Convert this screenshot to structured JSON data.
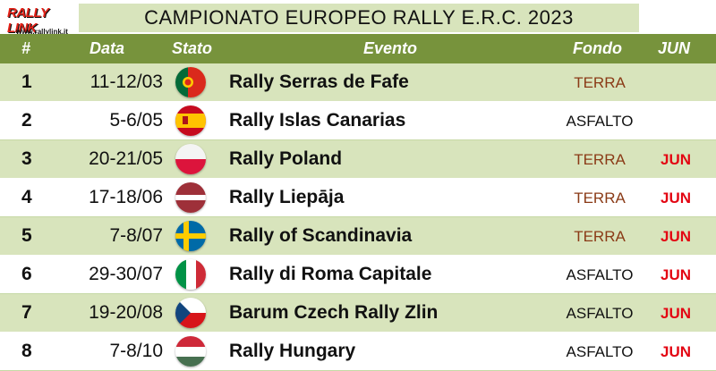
{
  "logo": {
    "brand": "RALLY LINK",
    "url": "www.rallylink.it"
  },
  "title": "CAMPIONATO EUROPEO RALLY E.R.C. 2023",
  "headers": {
    "num": "#",
    "date": "Data",
    "stato": "Stato",
    "evento": "Evento",
    "fondo": "Fondo",
    "jun": "JUN"
  },
  "colors": {
    "header_bg": "#77933c",
    "band": "#d8e4bc",
    "terra": "#8a3a16",
    "jun": "#e30613"
  },
  "rows": [
    {
      "num": "1",
      "date": "11-12/03",
      "flag": "portugal-flag-icon",
      "event": "Rally Serras de Fafe",
      "fondo": "TERRA",
      "jun": ""
    },
    {
      "num": "2",
      "date": "5-6/05",
      "flag": "spain-flag-icon",
      "event": "Rally Islas Canarias",
      "fondo": "ASFALTO",
      "jun": ""
    },
    {
      "num": "3",
      "date": "20-21/05",
      "flag": "poland-flag-icon",
      "event": "Rally Poland",
      "fondo": "TERRA",
      "jun": "JUN"
    },
    {
      "num": "4",
      "date": "17-18/06",
      "flag": "latvia-flag-icon",
      "event": "Rally Liepāja",
      "fondo": "TERRA",
      "jun": "JUN"
    },
    {
      "num": "5",
      "date": "7-8/07",
      "flag": "sweden-flag-icon",
      "event": "Rally of Scandinavia",
      "fondo": "TERRA",
      "jun": "JUN"
    },
    {
      "num": "6",
      "date": "29-30/07",
      "flag": "italy-flag-icon",
      "event": "Rally di Roma Capitale",
      "fondo": "ASFALTO",
      "jun": "JUN"
    },
    {
      "num": "7",
      "date": "19-20/08",
      "flag": "czech-flag-icon",
      "event": "Barum Czech Rally Zlin",
      "fondo": "ASFALTO",
      "jun": "JUN"
    },
    {
      "num": "8",
      "date": "7-8/10",
      "flag": "hungary-flag-icon",
      "event": "Rally Hungary",
      "fondo": "ASFALTO",
      "jun": "JUN"
    }
  ]
}
